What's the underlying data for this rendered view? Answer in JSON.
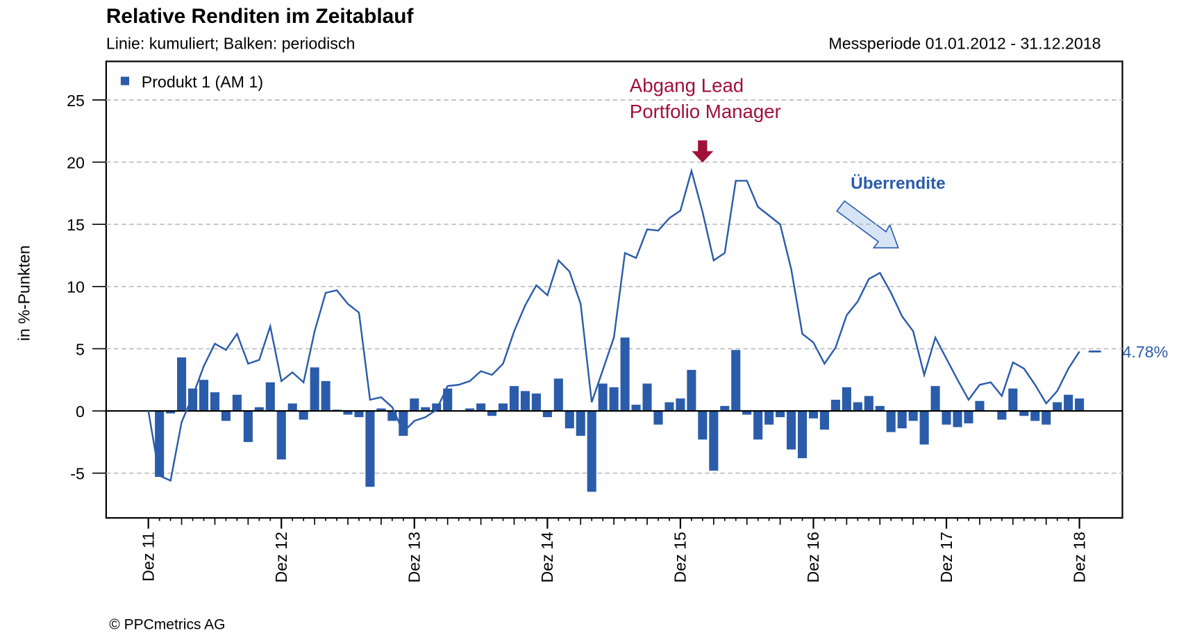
{
  "chart_data": {
    "type": "combo",
    "title": "Relative Renditen im Zeitablauf",
    "subtitle": "Linie: kumuliert; Balken: periodisch",
    "period": "Messperiode 01.01.2012 - 31.12.2018",
    "y_label": "in %-Punkten",
    "footer": "© PPCmetrics AG",
    "annotations": [
      {
        "lines": [
          "Abgang Lead",
          "Portfolio Manager"
        ],
        "color": "#a0103a"
      },
      {
        "lines": [
          "Überrendite"
        ],
        "color": "#2a5caa"
      }
    ],
    "categories": [
      "Dez 11",
      null,
      null,
      null,
      null,
      null,
      null,
      null,
      null,
      null,
      null,
      null,
      "Dez 12",
      null,
      null,
      null,
      null,
      null,
      null,
      null,
      null,
      null,
      null,
      null,
      "Dez 13",
      null,
      null,
      null,
      null,
      null,
      null,
      null,
      null,
      null,
      null,
      null,
      "Dez 14",
      null,
      null,
      null,
      null,
      null,
      null,
      null,
      null,
      null,
      null,
      null,
      "Dez 15",
      null,
      null,
      null,
      null,
      null,
      null,
      null,
      null,
      null,
      null,
      null,
      "Dez 16",
      null,
      null,
      null,
      null,
      null,
      null,
      null,
      null,
      null,
      null,
      null,
      "Dez 17",
      null,
      null,
      null,
      null,
      null,
      null,
      null,
      null,
      null,
      null,
      null,
      "Dez 18"
    ],
    "series": [
      {
        "name": "Produkt 1 (AM 1)",
        "color": "#2a5caa",
        "bar_values": [
          null,
          -5.3,
          -0.2,
          4.3,
          1.8,
          2.5,
          1.5,
          -0.8,
          1.3,
          -2.5,
          0.3,
          2.3,
          -3.9,
          0.6,
          -0.7,
          3.5,
          2.4,
          0.1,
          -0.3,
          -0.5,
          -6.1,
          0.2,
          -0.8,
          -2.0,
          1.0,
          0.3,
          0.6,
          1.8,
          0,
          0.2,
          0.6,
          -0.4,
          0.6,
          2.0,
          1.6,
          1.4,
          -0.5,
          2.6,
          -1.4,
          -2.0,
          -6.5,
          2.2,
          1.9,
          5.9,
          0.5,
          2.2,
          -1.1,
          0.7,
          1.0,
          3.3,
          -2.3,
          -4.8,
          0.4,
          4.9,
          -0.3,
          -2.3,
          -1.1,
          -0.5,
          -3.1,
          -3.8,
          -0.6,
          -1.5,
          0.9,
          1.9,
          0.7,
          1.2,
          0.4,
          -1.7,
          -1.4,
          -0.8,
          -2.7,
          2.0,
          -1.1,
          -1.3,
          -1.0,
          0.8,
          0,
          -0.7,
          1.8,
          -0.4,
          -0.8,
          -1.1,
          0.7,
          1.3,
          1.0
        ],
        "line_values": [
          0,
          -5.2,
          -5.6,
          -0.9,
          1.2,
          3.6,
          5.4,
          4.9,
          6.2,
          3.8,
          4.1,
          6.8,
          2.4,
          3.1,
          2.3,
          6.4,
          9.5,
          9.7,
          8.6,
          7.9,
          0.9,
          1.1,
          0.3,
          -1.7,
          -0.8,
          -0.5,
          0.1,
          2.0,
          2.1,
          2.4,
          3.2,
          2.9,
          3.8,
          6.4,
          8.5,
          10.1,
          9.3,
          12.1,
          11.2,
          8.6,
          0.7,
          3.3,
          5.9,
          12.7,
          12.3,
          14.6,
          14.5,
          15.5,
          16.1,
          19.3,
          16.0,
          12.1,
          12.7,
          18.5,
          18.5,
          16.4,
          15.7,
          15.0,
          11.4,
          6.2,
          5.5,
          3.8,
          5.1,
          7.7,
          8.8,
          10.6,
          11.1,
          9.5,
          7.6,
          6.4,
          2.9,
          5.9,
          4.2,
          2.5,
          0.9,
          2.1,
          2.3,
          1.2,
          3.9,
          3.4,
          2.1,
          0.6,
          1.6,
          3.4,
          4.78
        ],
        "last_value_label": "4.78%"
      }
    ],
    "ylim": [
      -8.6,
      28.1
    ],
    "yticks": [
      -5,
      0,
      5,
      10,
      15,
      20,
      25
    ],
    "grid": true,
    "legend": "top-left"
  }
}
